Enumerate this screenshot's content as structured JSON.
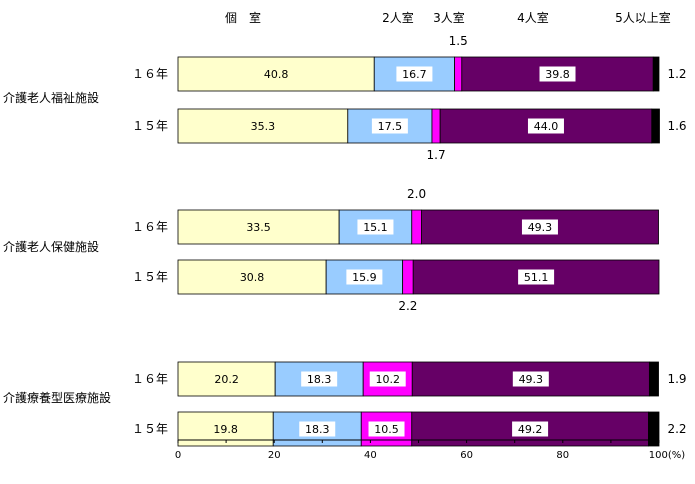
{
  "chart_data": {
    "type": "bar",
    "orientation": "horizontal",
    "stacked": true,
    "series_labels": [
      "個　室",
      "2人室",
      "3人室",
      "4人室",
      "5人以上室"
    ],
    "colors": [
      "#FFFFCC",
      "#99CCFF",
      "#FF00FF",
      "#660066",
      "#000000"
    ],
    "xlim": [
      0,
      100
    ],
    "x_ticks": [
      "0",
      "20",
      "40",
      "60",
      "80",
      "100(%)"
    ],
    "groups": [
      {
        "name": "介護老人福祉施設",
        "rows": [
          {
            "year": "１６年",
            "values": [
              40.8,
              16.7,
              1.5,
              39.8,
              1.2
            ],
            "labels": [
              "40.8",
              "16.7",
              "1.5",
              "39.8",
              "1.2"
            ]
          },
          {
            "year": "１５年",
            "values": [
              35.3,
              17.5,
              1.7,
              44.0,
              1.6
            ],
            "labels": [
              "35.3",
              "17.5",
              "1.7",
              "44.0",
              "1.6"
            ]
          }
        ]
      },
      {
        "name": "介護老人保健施設",
        "rows": [
          {
            "year": "１６年",
            "values": [
              33.5,
              15.1,
              2.0,
              49.3,
              0
            ],
            "labels": [
              "33.5",
              "15.1",
              "2.0",
              "49.3",
              ""
            ]
          },
          {
            "year": "１５年",
            "values": [
              30.8,
              15.9,
              2.2,
              51.1,
              0
            ],
            "labels": [
              "30.8",
              "15.9",
              "2.2",
              "51.1",
              ""
            ]
          }
        ]
      },
      {
        "name": "介護療養型医療施設",
        "rows": [
          {
            "year": "１６年",
            "values": [
              20.2,
              18.3,
              10.2,
              49.3,
              1.9
            ],
            "labels": [
              "20.2",
              "18.3",
              "10.2",
              "49.3",
              "1.9"
            ]
          },
          {
            "year": "１５年",
            "values": [
              19.8,
              18.3,
              10.5,
              49.2,
              2.2
            ],
            "labels": [
              "19.8",
              "18.3",
              "10.5",
              "49.2",
              "2.2"
            ]
          }
        ]
      }
    ]
  }
}
